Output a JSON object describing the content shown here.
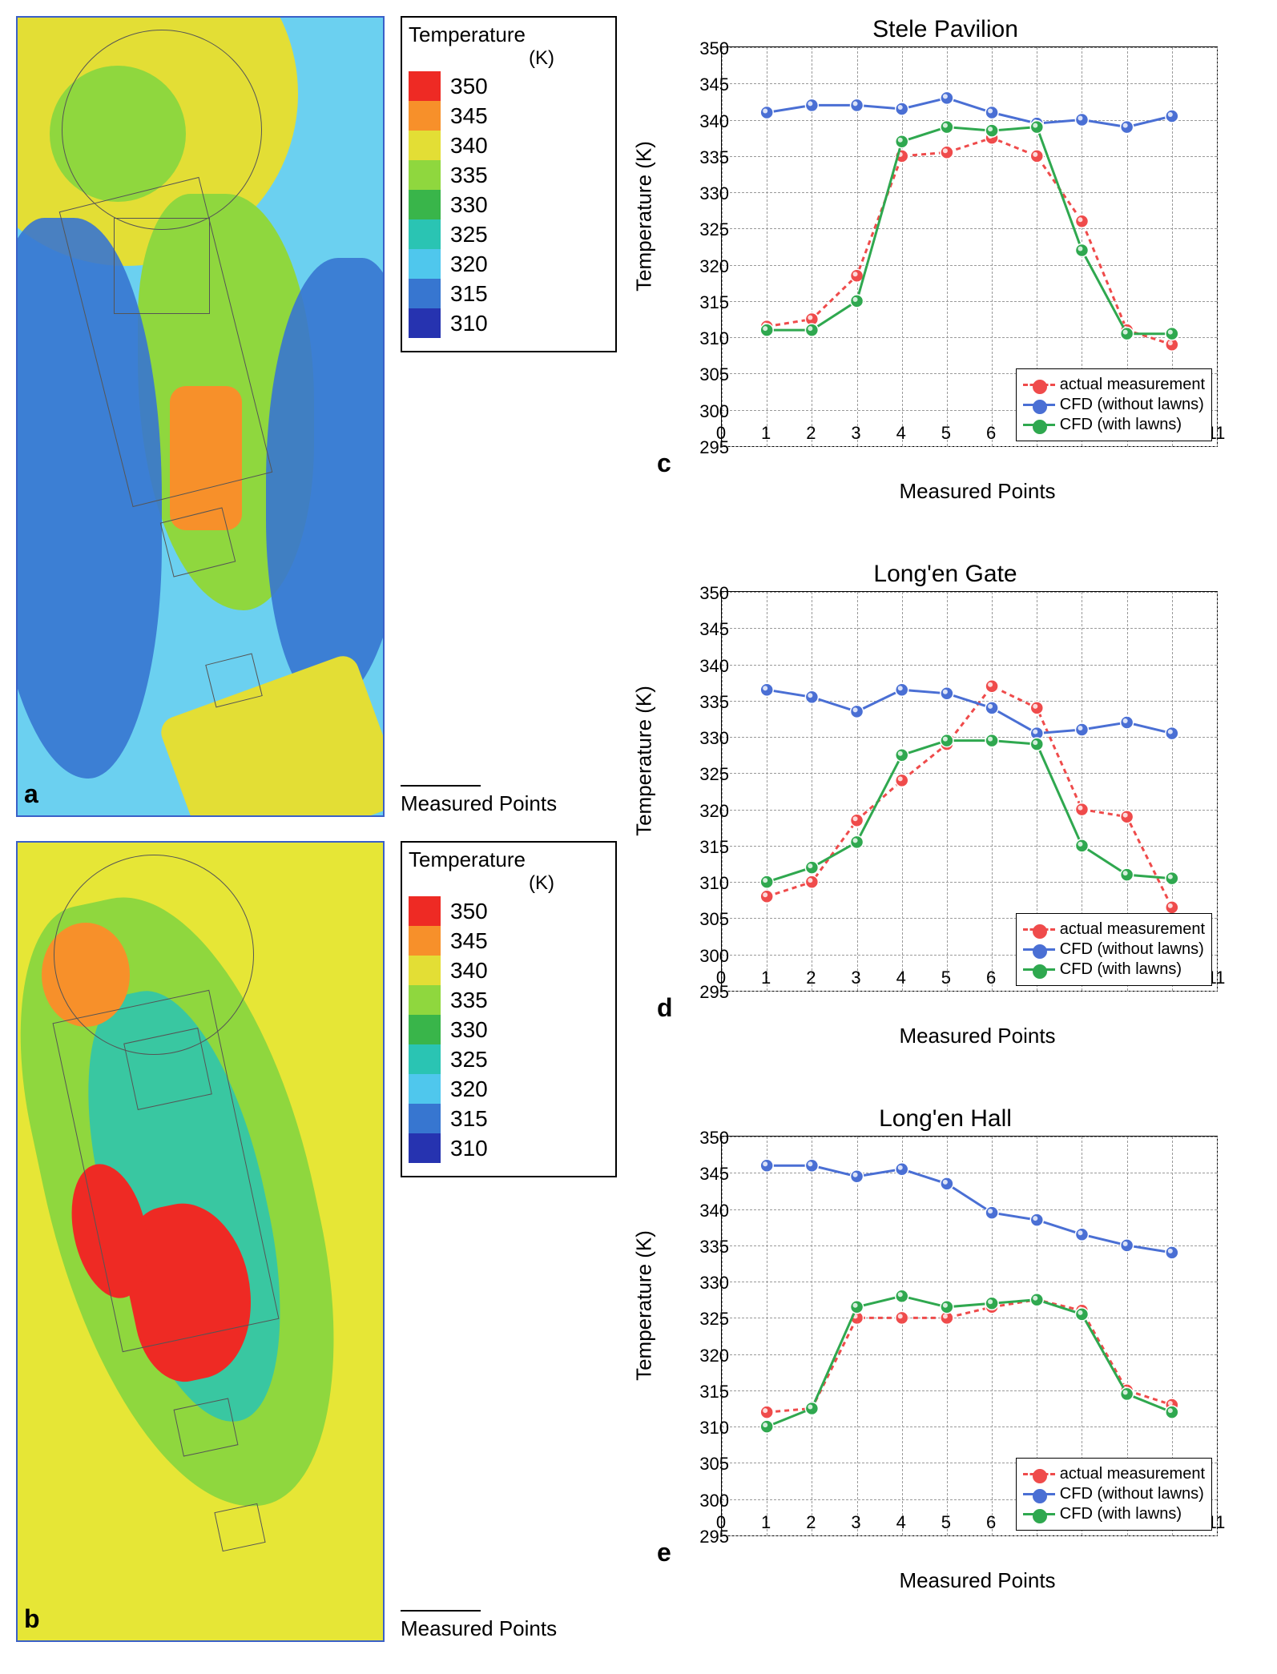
{
  "legend": {
    "title": "Temperature",
    "unit": "(K)",
    "steps": [
      {
        "label": "350",
        "color": "#ee2a24"
      },
      {
        "label": "345",
        "color": "#f7902a"
      },
      {
        "label": "340",
        "color": "#e3de35"
      },
      {
        "label": "335",
        "color": "#8fd73e"
      },
      {
        "label": "330",
        "color": "#39b54a"
      },
      {
        "label": "325",
        "color": "#2ac4b3"
      },
      {
        "label": "320",
        "color": "#4fc7ed"
      },
      {
        "label": "315",
        "color": "#3776d0"
      },
      {
        "label": "310",
        "color": "#2633b0"
      }
    ]
  },
  "contour": {
    "a": {
      "label": "a",
      "outer_border": "#3a60c8",
      "measured_points_text": "Measured Points",
      "background": "#6bd0f0"
    },
    "b": {
      "label": "b",
      "outer_border": "#3a60c8",
      "measured_points_text": "Measured Points",
      "background": "#e6e636"
    }
  },
  "charts": [
    {
      "id": "c",
      "title": "Stele Pavilion",
      "xlabel": "Measured Points",
      "ylabel": "Temperature (K)",
      "xlim": [
        0,
        11
      ],
      "ylim": [
        295,
        350
      ],
      "xtick_step": 1,
      "ytick_step": 5,
      "grid_color": "#999999",
      "background_color": "#ffffff",
      "axis_fontsize": 26,
      "tick_fontsize": 22,
      "title_fontsize": 30,
      "series": [
        {
          "name": "actual measurement",
          "color": "#ef4b4b",
          "dash": "6,5",
          "marker": "circle",
          "x": [
            1,
            2,
            3,
            4,
            5,
            6,
            7,
            8,
            9,
            10
          ],
          "y": [
            311.5,
            312.5,
            318.5,
            335,
            335.5,
            337.5,
            335,
            326,
            311,
            309
          ]
        },
        {
          "name": "CFD (without lawns)",
          "color": "#4a6fd4",
          "dash": "",
          "marker": "circle",
          "x": [
            1,
            2,
            3,
            4,
            5,
            6,
            7,
            8,
            9,
            10
          ],
          "y": [
            341,
            342,
            342,
            341.5,
            343,
            341,
            339.5,
            340,
            339,
            340.5
          ]
        },
        {
          "name": "CFD (with lawns)",
          "color": "#2fa84f",
          "dash": "",
          "marker": "circle",
          "x": [
            1,
            2,
            3,
            4,
            5,
            6,
            7,
            8,
            9,
            10
          ],
          "y": [
            311,
            311,
            315,
            337,
            339,
            338.5,
            339,
            322,
            310.5,
            310.5
          ]
        }
      ],
      "legend_pos": "bottom-right"
    },
    {
      "id": "d",
      "title": "Long'en Gate",
      "xlabel": "Measured Points",
      "ylabel": "Temperature (K)",
      "xlim": [
        0,
        11
      ],
      "ylim": [
        295,
        350
      ],
      "xtick_step": 1,
      "ytick_step": 5,
      "grid_color": "#999999",
      "background_color": "#ffffff",
      "axis_fontsize": 26,
      "tick_fontsize": 22,
      "title_fontsize": 30,
      "series": [
        {
          "name": "actual measurement",
          "color": "#ef4b4b",
          "dash": "6,5",
          "marker": "circle",
          "x": [
            1,
            2,
            3,
            4,
            5,
            6,
            7,
            8,
            9,
            10
          ],
          "y": [
            308,
            310,
            318.5,
            324,
            329,
            337,
            334,
            320,
            319,
            306.5
          ]
        },
        {
          "name": "CFD (without lawns)",
          "color": "#4a6fd4",
          "dash": "",
          "marker": "circle",
          "x": [
            1,
            2,
            3,
            4,
            5,
            6,
            7,
            8,
            9,
            10
          ],
          "y": [
            336.5,
            335.5,
            333.5,
            336.5,
            336,
            334,
            330.5,
            331,
            332,
            330.5
          ]
        },
        {
          "name": "CFD (with lawns)",
          "color": "#2fa84f",
          "dash": "",
          "marker": "circle",
          "x": [
            1,
            2,
            3,
            4,
            5,
            6,
            7,
            8,
            9,
            10
          ],
          "y": [
            310,
            312,
            315.5,
            327.5,
            329.5,
            329.5,
            329,
            315,
            311,
            310.5
          ]
        }
      ],
      "legend_pos": "bottom-right"
    },
    {
      "id": "e",
      "title": "Long'en Hall",
      "xlabel": "Measured Points",
      "ylabel": "Temperature (K)",
      "xlim": [
        0,
        11
      ],
      "ylim": [
        295,
        350
      ],
      "xtick_step": 1,
      "ytick_step": 5,
      "grid_color": "#999999",
      "background_color": "#ffffff",
      "axis_fontsize": 26,
      "tick_fontsize": 22,
      "title_fontsize": 30,
      "series": [
        {
          "name": "actual measurement",
          "color": "#ef4b4b",
          "dash": "6,5",
          "marker": "circle",
          "x": [
            1,
            2,
            3,
            4,
            5,
            6,
            7,
            8,
            9,
            10
          ],
          "y": [
            312,
            312.5,
            325,
            325,
            325,
            326.5,
            327.5,
            326,
            315,
            313
          ]
        },
        {
          "name": "CFD (without lawns)",
          "color": "#4a6fd4",
          "dash": "",
          "marker": "circle",
          "x": [
            1,
            2,
            3,
            4,
            5,
            6,
            7,
            8,
            9,
            10
          ],
          "y": [
            346,
            346,
            344.5,
            345.5,
            343.5,
            339.5,
            338.5,
            336.5,
            335,
            334
          ]
        },
        {
          "name": "CFD (with lawns)",
          "color": "#2fa84f",
          "dash": "",
          "marker": "circle",
          "x": [
            1,
            2,
            3,
            4,
            5,
            6,
            7,
            8,
            9,
            10
          ],
          "y": [
            310,
            312.5,
            326.5,
            328,
            326.5,
            327,
            327.5,
            325.5,
            314.5,
            312
          ]
        }
      ],
      "legend_pos": "bottom-right"
    }
  ]
}
